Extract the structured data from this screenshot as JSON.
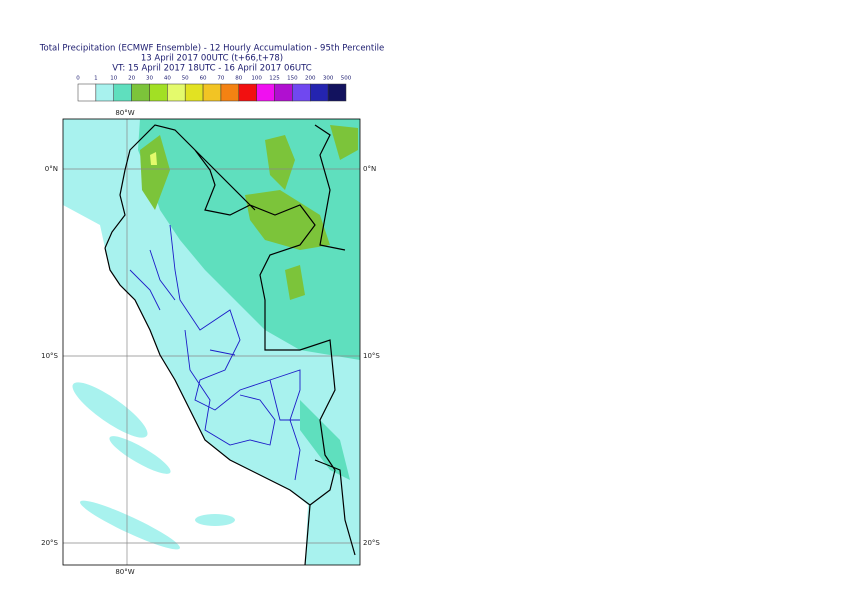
{
  "header": {
    "title_lines": [
      "Total Precipitation (ECMWF Ensemble) - 12 Hourly Accumulation - 95th Percentile",
      "13 April 2017 00UTC (t+66,t+78)",
      "VT: 15 April 2017 18UTC - 16 April 2017 06UTC"
    ]
  },
  "legend": {
    "labels": [
      "0",
      "1",
      "10",
      "20",
      "30",
      "40",
      "50",
      "60",
      "70",
      "80",
      "100",
      "125",
      "150",
      "200",
      "300",
      "500"
    ],
    "colors": [
      "#ffffff",
      "#a8f2ee",
      "#5fdfbe",
      "#7cc43a",
      "#a2e024",
      "#e4fa6c",
      "#e2e222",
      "#f2c424",
      "#f48212",
      "#f21010",
      "#f010f0",
      "#b010d0",
      "#7048f0",
      "#2424b0",
      "#12125e"
    ]
  },
  "map": {
    "lon_labels": [
      "80°W"
    ],
    "lat_labels": [
      "0°N",
      "10°S",
      "20°S"
    ]
  }
}
